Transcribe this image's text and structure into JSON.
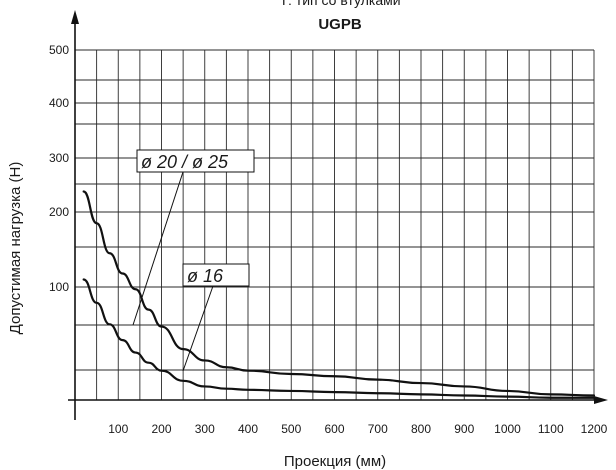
{
  "chart_data": {
    "type": "line",
    "title_top": "Т: тип со втулками",
    "title": "UGPB",
    "xlabel": "Проекция (мм)",
    "ylabel": "Допустимая нагрузка (Н)",
    "xlim": [
      0,
      1200
    ],
    "x_ticks": [
      100,
      200,
      300,
      400,
      500,
      600,
      700,
      800,
      900,
      1000,
      1100,
      1200
    ],
    "y_tick_labels": [
      {
        "label": "100",
        "value": 100
      },
      {
        "label": "200",
        "value": 200
      },
      {
        "label": "300",
        "value": 300
      },
      {
        "label": "400",
        "value": 400
      },
      {
        "label": "500",
        "value": 500
      }
    ],
    "grid": true,
    "series": [
      {
        "name": "ø 20 / ø 25",
        "x": [
          20,
          50,
          80,
          110,
          140,
          170,
          200,
          250,
          300,
          350,
          400,
          500,
          600,
          700,
          800,
          900,
          1000,
          1100,
          1200
        ],
        "y": [
          238,
          185,
          145,
          118,
          98,
          80,
          65,
          45,
          35,
          29,
          26,
          23,
          21,
          18,
          15,
          12,
          8,
          5,
          4
        ]
      },
      {
        "name": "ø 16",
        "x": [
          20,
          50,
          80,
          110,
          140,
          170,
          200,
          250,
          300,
          350,
          400,
          500,
          600,
          700,
          800,
          900,
          1000,
          1100,
          1200
        ],
        "y": [
          110,
          86,
          67,
          53,
          42,
          33,
          26,
          17,
          12,
          10,
          9,
          8,
          7,
          6,
          5,
          4,
          3,
          2,
          2
        ]
      }
    ]
  }
}
